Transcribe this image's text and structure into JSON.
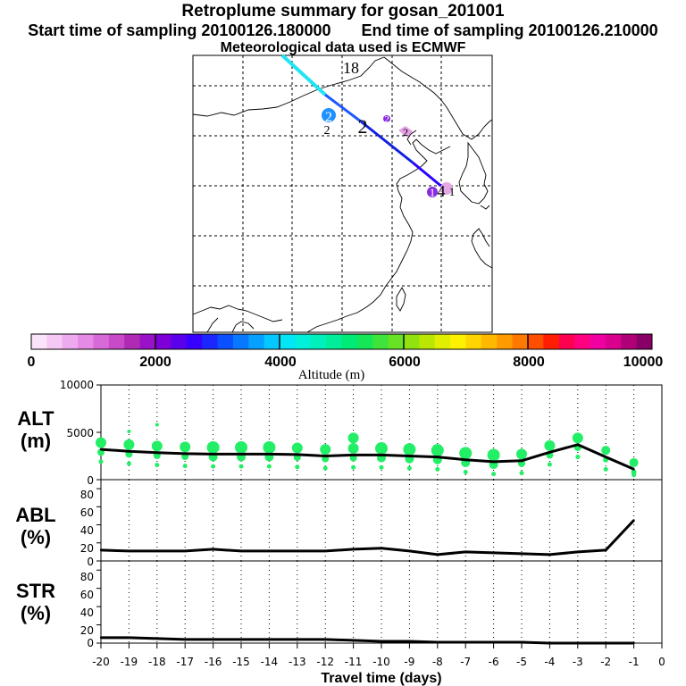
{
  "header": {
    "title": "Retroplume summary for gosan_201001",
    "start_label": "Start time of sampling 20100126.180000",
    "end_label": "End time of sampling 20100126.210000",
    "met_label": "Meteorological data used is ECMWF"
  },
  "map": {
    "markers": [
      {
        "label": "18",
        "color": "#000000"
      },
      {
        "label": "2",
        "color": "#000000"
      },
      {
        "label": "2",
        "color": "#1e90ff"
      },
      {
        "label": "2",
        "color": "#00a0b0"
      },
      {
        "label": "2",
        "color": "#8a2be2"
      },
      {
        "label": "2",
        "color": "#da70d6"
      },
      {
        "label": "1",
        "color": "#8a2be2"
      },
      {
        "label": "4",
        "color": "#000000"
      },
      {
        "label": "1",
        "color": "#ff69b4"
      }
    ]
  },
  "colorbar": {
    "ticks": [
      "0",
      "2000",
      "4000",
      "6000",
      "8000",
      "10000"
    ],
    "label": "Altitude  (m)",
    "colors": [
      "#fbe4fb",
      "#f5c8f5",
      "#eeaaee",
      "#e58ae5",
      "#d86ad8",
      "#c84ac8",
      "#b02ab4",
      "#9a12c8",
      "#7e00d8",
      "#5a00ea",
      "#3800ff",
      "#1a28ff",
      "#0a50ff",
      "#0878ff",
      "#06a0ff",
      "#04c8ff",
      "#02e6f6",
      "#00f0da",
      "#00f0bc",
      "#00ee9a",
      "#00ea78",
      "#14e658",
      "#3ee43c",
      "#68e224",
      "#92e210",
      "#bae604",
      "#e2ee00",
      "#fff000",
      "#ffd400",
      "#ffb800",
      "#ff9a00",
      "#ff7800",
      "#ff4e00",
      "#ff1e00",
      "#ff0050",
      "#ff0080",
      "#f000a0",
      "#d8008c",
      "#b00078",
      "#880066"
    ]
  },
  "chart_data": [
    {
      "type": "line",
      "title": "ALT (m)",
      "ylabel_line1": "ALT",
      "ylabel_line2": "(m)",
      "ylim": [
        0,
        10000
      ],
      "yticks": [
        "10000",
        "5000",
        "0"
      ],
      "x": [
        -20,
        -19,
        -18,
        -17,
        -16,
        -15,
        -14,
        -13,
        -12,
        -11,
        -10,
        -9,
        -8,
        -7,
        -6,
        -5,
        -4,
        -3,
        -2,
        -1
      ],
      "values": [
        3200,
        3000,
        2850,
        2750,
        2700,
        2700,
        2700,
        2650,
        2500,
        2600,
        2600,
        2500,
        2400,
        2100,
        1900,
        2000,
        2900,
        3700,
        2400,
        1100
      ],
      "cluster_color": "#22ee66"
    },
    {
      "type": "line",
      "title": "ABL (%)",
      "ylabel_line1": "ABL",
      "ylabel_line2": "(%)",
      "ylim": [
        0,
        90
      ],
      "yticks": [
        "80",
        "60",
        "40",
        "20",
        "0"
      ],
      "x": [
        -20,
        -19,
        -18,
        -17,
        -16,
        -15,
        -14,
        -13,
        -12,
        -11,
        -10,
        -9,
        -8,
        -7,
        -6,
        -5,
        -4,
        -3,
        -2,
        -1
      ],
      "values": [
        12,
        11,
        11,
        11,
        13,
        11,
        11,
        11,
        11,
        13,
        14,
        11,
        7,
        10,
        9,
        8,
        7,
        10,
        12,
        45
      ]
    },
    {
      "type": "line",
      "title": "STR (%)",
      "ylabel_line1": "STR",
      "ylabel_line2": "(%)",
      "ylim": [
        0,
        90
      ],
      "yticks": [
        "80",
        "60",
        "40",
        "20",
        "0"
      ],
      "x": [
        -20,
        -19,
        -18,
        -17,
        -16,
        -15,
        -14,
        -13,
        -12,
        -11,
        -10,
        -9,
        -8,
        -7,
        -6,
        -5,
        -4,
        -3,
        -2,
        -1
      ],
      "values": [
        6,
        6,
        5,
        4,
        4,
        4,
        4,
        4,
        4,
        3,
        2,
        2,
        1,
        1,
        1,
        1,
        0,
        0,
        0,
        0
      ]
    }
  ],
  "xaxis": {
    "ticks": [
      "-20",
      "-19",
      "-18",
      "-17",
      "-16",
      "-15",
      "-14",
      "-13",
      "-12",
      "-11",
      "-10",
      "-9",
      "-8",
      "-7",
      "-6",
      "-5",
      "-4",
      "-3",
      "-2",
      "-1",
      "0"
    ],
    "label": "Travel time (days)"
  }
}
